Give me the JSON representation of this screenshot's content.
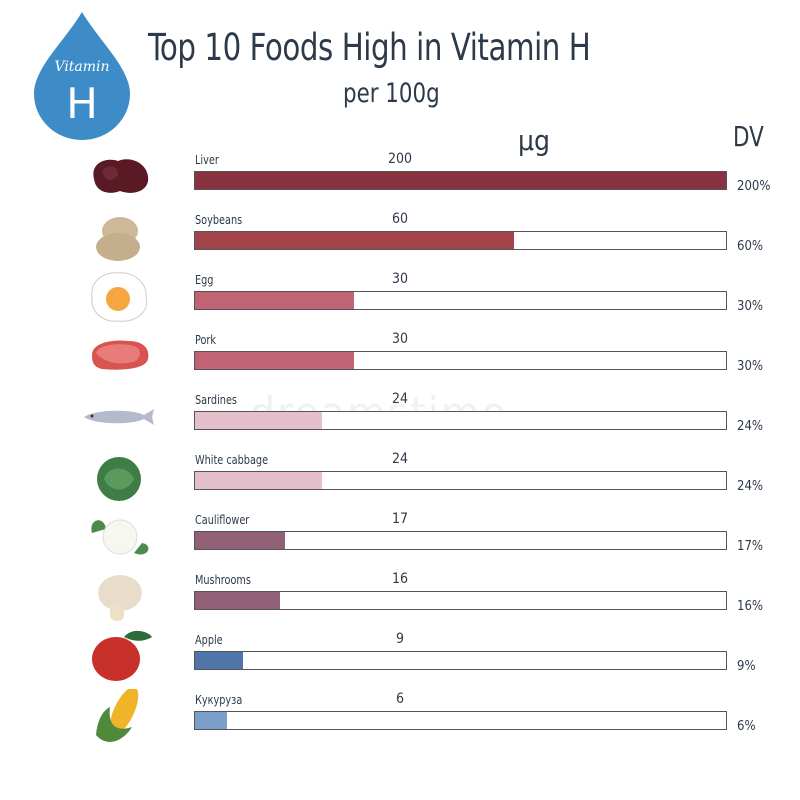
{
  "header": {
    "title": "Top 10 Foods High in Vitamin H",
    "subtitle": "per 100g",
    "badge_word": "Vitamin",
    "badge_letter": "H",
    "unit_label": "µg",
    "dv_label": "DV"
  },
  "watermark": "dreamstime",
  "chart_data": {
    "type": "bar",
    "title": "Top 10 Foods High in Vitamin H",
    "subtitle": "per 100g",
    "xlabel": "µg",
    "ylabel": "",
    "xlim": [
      0,
      100
    ],
    "categories": [
      "Liver",
      "Soybeans",
      "Egg",
      "Pork",
      "Sardines",
      "White cabbage",
      "Cauliflower",
      "Mushrooms",
      "Apple",
      "Кукуруза"
    ],
    "values_ug": [
      200,
      60,
      30,
      30,
      24,
      24,
      17,
      16,
      9,
      6
    ],
    "dv_percent": [
      200,
      60,
      30,
      30,
      24,
      24,
      17,
      16,
      9,
      6
    ],
    "items": [
      {
        "name": "Liver",
        "value": "200",
        "dv": "200%",
        "fill": 100,
        "color": "#8a3340",
        "icon": "liver-icon"
      },
      {
        "name": "Soybeans",
        "value": "60",
        "dv": "60%",
        "fill": 60,
        "color": "#a3434b",
        "icon": "soybeans-icon"
      },
      {
        "name": "Egg",
        "value": "30",
        "dv": "30%",
        "fill": 30,
        "color": "#c06372",
        "icon": "egg-icon"
      },
      {
        "name": "Pork",
        "value": "30",
        "dv": "30%",
        "fill": 30,
        "color": "#c06372",
        "icon": "pork-icon"
      },
      {
        "name": "Sardines",
        "value": "24",
        "dv": "24%",
        "fill": 24,
        "color": "#e6bfcd",
        "icon": "sardine-icon"
      },
      {
        "name": "White cabbage",
        "value": "24",
        "dv": "24%",
        "fill": 24,
        "color": "#e6bfcd",
        "icon": "cabbage-icon"
      },
      {
        "name": "Cauliflower",
        "value": "17",
        "dv": "17%",
        "fill": 17,
        "color": "#926178",
        "icon": "cauliflower-icon"
      },
      {
        "name": "Mushrooms",
        "value": "16",
        "dv": "16%",
        "fill": 16,
        "color": "#926178",
        "icon": "mushroom-icon"
      },
      {
        "name": "Apple",
        "value": "9",
        "dv": "9%",
        "fill": 9,
        "color": "#4f76a8",
        "icon": "apple-icon"
      },
      {
        "name": "Кукуруза",
        "value": "6",
        "dv": "6%",
        "fill": 6,
        "color": "#7b9ecb",
        "icon": "corn-icon"
      }
    ]
  }
}
